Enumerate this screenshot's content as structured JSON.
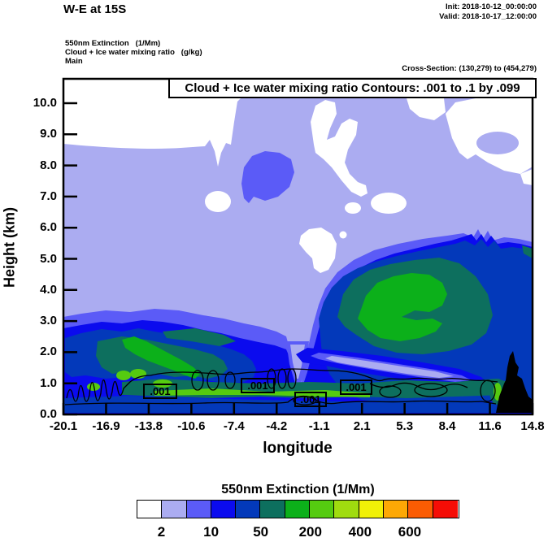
{
  "header": {
    "title": "W-E at 15S",
    "field_lines": "550nm Extinction   (1/Mm)\nCloud + Ice water mixing ratio   (g/kg)\nMain",
    "init_label": "Init: 2018-10-12_00:00:00",
    "valid_label": "Valid: 2018-10-17_12:00:00",
    "cross_section": "Cross-Section: (130,279) to (454,279)"
  },
  "plot": {
    "contour_info_box": "Cloud + Ice water mixing ratio Contours: .001 to .1 by .099",
    "xlabel": "longitude",
    "ylabel": "Height (km)",
    "x_tick_labels": [
      "-20.1",
      "-16.9",
      "-13.8",
      "-10.6",
      "-7.4",
      "-4.2",
      "-1.1",
      "2.1",
      "5.3",
      "8.4",
      "11.6",
      "14.8"
    ],
    "y_tick_labels": [
      "10.0",
      "9.0",
      "8.0",
      "7.0",
      "6.0",
      "5.0",
      "4.0",
      "3.0",
      "2.0",
      "1.0",
      "0.0"
    ],
    "contour_labels": [
      ".001",
      ".001",
      ".001",
      ".001"
    ]
  },
  "colorbar": {
    "title": "550nm Extinction  (1/Mm)",
    "cell_colors": [
      "#ffffff",
      "#abacf1",
      "#5b5bf7",
      "#0b0bee",
      "#0339ba",
      "#0d6f5e",
      "#0cb01a",
      "#55cb10",
      "#a0dc0f",
      "#f0f007",
      "#fda805",
      "#fb5c03",
      "#f50d06"
    ],
    "tick_labels": [
      "2",
      "10",
      "50",
      "200",
      "400",
      "600"
    ]
  },
  "chart_data": {
    "type": "heatmap",
    "variant": "filled-contour vertical cross-section (west-east at 15S) with line-contour overlay",
    "title": "Cloud + Ice water mixing ratio Contours: .001 to .1 by .099",
    "xlabel": "longitude",
    "ylabel": "Height (km)",
    "xlim": [
      -20.1,
      14.8
    ],
    "ylim": [
      0.0,
      10.8
    ],
    "x_ticks": [
      -20.1,
      -16.9,
      -13.8,
      -10.6,
      -7.4,
      -4.2,
      -1.1,
      2.1,
      5.3,
      8.4,
      11.6,
      14.8
    ],
    "y_ticks": [
      0.0,
      1.0,
      2.0,
      3.0,
      4.0,
      5.0,
      6.0,
      7.0,
      8.0,
      9.0,
      10.0
    ],
    "grid": false,
    "legend_position": "horizontal colorbar below plot",
    "fill_variable": {
      "name": "550nm Extinction",
      "units": "1/Mm",
      "labeled_levels": [
        2,
        10,
        50,
        200,
        400,
        600
      ],
      "palette_13_cells": [
        "#ffffff",
        "#abacf1",
        "#5b5bf7",
        "#0b0bee",
        "#0339ba",
        "#0d6f5e",
        "#0cb01a",
        "#55cb10",
        "#a0dc0f",
        "#f0f007",
        "#fda805",
        "#fb5c03",
        "#f50d06"
      ],
      "label_positions": "labels sit under cell boundaries 1,3,5,7,9,11 of 13 cells"
    },
    "line_variable": {
      "name": "Cloud + Ice water mixing ratio",
      "units": "g/kg",
      "contour_levels": [
        0.001,
        0.1
      ],
      "levels_text": ".001 to .1 by .099",
      "labels_on_plot": [
        {
          "text": ".001",
          "lon": -13.1,
          "height_km": 0.7
        },
        {
          "text": ".001",
          "lon": -5.8,
          "height_km": 0.9
        },
        {
          "text": ".001",
          "lon": -1.8,
          "height_km": 0.5
        },
        {
          "text": ".001",
          "lon": 1.6,
          "height_km": 0.9
        }
      ]
    },
    "features": [
      {
        "value_range_1_per_Mm": "< 2 (white)",
        "where": "above ~8.5 km west of lon -6; large patches aloft (6-10 km) east of lon -6; small pockets near lon -7 at 3.5-4.5 km and lon -3 to 0 at 4.5-6.5 km"
      },
      {
        "value_range_1_per_Mm": "2-10 (lavender)",
        "where": "background filling most of the section from the surface to ~8.5 km"
      },
      {
        "value_range_1_per_Mm": "10-50 (slate blue)",
        "where": "pocket at lon ≈ -7 to -5, 6.8-7.6 km; band below ~3.2 km across the section; thin sloping streak remains lavender-cored near lon -4 to 10 at ~1-2 km"
      },
      {
        "value_range_1_per_Mm": "50-200 (blue/navy)",
        "where": "western boundary-layer plume lon -20.1 to -6 below ~2.8 km; broad eastern elevated plume lon -2 to 14.8 between ~1.5 and 5.3 km; thin layer ~0-0.6 km everywhere"
      },
      {
        "value_range_1_per_Mm": "200-400 (teal/green)",
        "where": "cores of western plume lon -17 to -12 at 0.5-2.5 km; core of eastern plume lon -1 to 9 at 2.5-4.5 km; thin streak at ~0.6-1 km from lon -13 to 12"
      },
      {
        "value_range_1_per_Mm": "400+ (bright green)",
        "where": "small cells near lon -16 to -12 at ~0.8-1.5 km and near lon 12 at ~0.7 km"
      },
      {
        "terrain": "black silhouette at lon ≈ 12.5-14.8 rising to ~2 km at the eastern edge"
      },
      {
        "cloud_ice_contour": ".001 g/kg contour encloses a thin layer ~0.4-1.3 km spanning most of the section, with small closed cells near lon -19 to -13"
      }
    ]
  }
}
